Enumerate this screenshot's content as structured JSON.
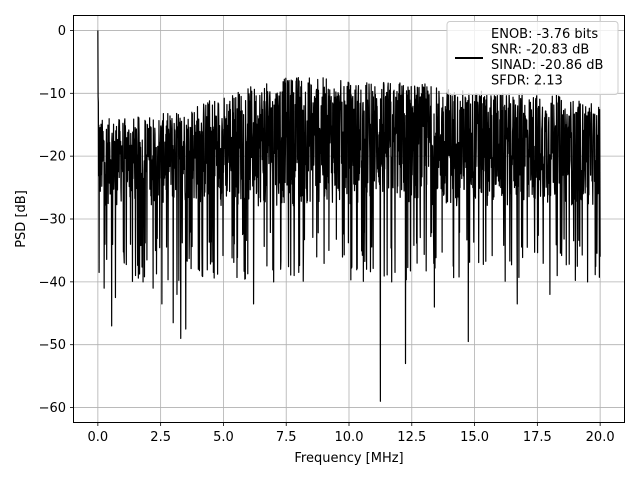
{
  "chart_data": {
    "type": "line",
    "title": "",
    "xlabel": "Frequency [MHz]",
    "ylabel": "PSD [dB]",
    "xlim": [
      -0.95,
      20.95
    ],
    "ylim": [
      -62.3,
      2.3
    ],
    "xticks": [
      0.0,
      2.5,
      5.0,
      7.5,
      10.0,
      12.5,
      15.0,
      17.5,
      20.0
    ],
    "xtick_labels": [
      "0.0",
      "2.5",
      "5.0",
      "7.5",
      "10.0",
      "12.5",
      "15.0",
      "17.5",
      "20.0"
    ],
    "yticks": [
      0,
      -10,
      -20,
      -30,
      -40,
      -50,
      -60
    ],
    "ytick_labels": [
      "0",
      "−10",
      "−20",
      "−30",
      "−40",
      "−50",
      "−60"
    ],
    "grid": true,
    "legend_position": "top-right",
    "line_color": "#000000",
    "grid_color": "#b0b0b0",
    "series": [
      {
        "name": "ENOB: -3.76 bits\nSNR: -20.83 dB\nSINAD: -20.86 dB\nSFDR: 2.13",
        "x_range": [
          0,
          20
        ],
        "n_points": 2048,
        "typical_band_db": [
          -28,
          -12
        ],
        "peak_envelope_db": [
          [
            0,
            0
          ],
          [
            0.05,
            -14
          ],
          [
            1,
            -14
          ],
          [
            3,
            -13
          ],
          [
            5,
            -10
          ],
          [
            8,
            -7
          ],
          [
            10,
            -8
          ],
          [
            12,
            -8
          ],
          [
            14,
            -9
          ],
          [
            16,
            -10
          ],
          [
            18,
            -10
          ],
          [
            20,
            -12
          ]
        ],
        "notable_points": [
          {
            "x": 0.0,
            "y": 0.0
          },
          {
            "x": 0.05,
            "y": -38.5
          },
          {
            "x": 0.25,
            "y": -41
          },
          {
            "x": 0.55,
            "y": -47
          },
          {
            "x": 0.7,
            "y": -42.5
          },
          {
            "x": 1.05,
            "y": -37
          },
          {
            "x": 1.5,
            "y": -39
          },
          {
            "x": 1.8,
            "y": -40
          },
          {
            "x": 2.2,
            "y": -41
          },
          {
            "x": 2.55,
            "y": -43.5
          },
          {
            "x": 3.0,
            "y": -46.5
          },
          {
            "x": 3.15,
            "y": -42
          },
          {
            "x": 3.3,
            "y": -49
          },
          {
            "x": 3.5,
            "y": -47.5
          },
          {
            "x": 4.0,
            "y": -38
          },
          {
            "x": 4.6,
            "y": -38.5
          },
          {
            "x": 6.2,
            "y": -43.5
          },
          {
            "x": 7.0,
            "y": -40
          },
          {
            "x": 8.0,
            "y": -38.5
          },
          {
            "x": 9.2,
            "y": -35
          },
          {
            "x": 10.7,
            "y": -38
          },
          {
            "x": 11.25,
            "y": -59
          },
          {
            "x": 11.7,
            "y": -40
          },
          {
            "x": 12.25,
            "y": -53
          },
          {
            "x": 13.4,
            "y": -44
          },
          {
            "x": 14.15,
            "y": -37.5
          },
          {
            "x": 14.75,
            "y": -49.5
          },
          {
            "x": 16.7,
            "y": -43.5
          },
          {
            "x": 18.0,
            "y": -42
          },
          {
            "x": 19.5,
            "y": -40
          },
          {
            "x": 20.0,
            "y": -36
          }
        ]
      }
    ]
  }
}
